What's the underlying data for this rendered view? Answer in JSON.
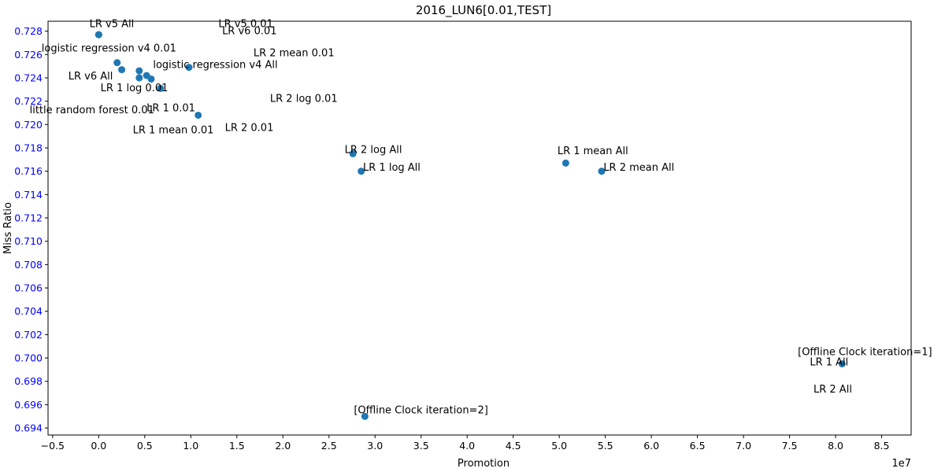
{
  "chart_data": {
    "type": "scatter",
    "title": "2016_LUN6[0.01,TEST]",
    "xlabel": "Promotion",
    "ylabel": "Miss Ratio",
    "x_offset_label": "1e7",
    "xlim": [
      -0.55,
      8.82
    ],
    "ylim": [
      0.6934,
      0.72885
    ],
    "xticks": [
      -0.5,
      0.0,
      0.5,
      1.0,
      1.5,
      2.0,
      2.5,
      3.0,
      3.5,
      4.0,
      4.5,
      5.0,
      5.5,
      6.0,
      6.5,
      7.0,
      7.5,
      8.0,
      8.5
    ],
    "xtick_labels": [
      "−0.5",
      "0.0",
      "0.5",
      "1.0",
      "1.5",
      "2.0",
      "2.5",
      "3.0",
      "3.5",
      "4.0",
      "4.5",
      "5.0",
      "5.5",
      "6.0",
      "6.5",
      "7.0",
      "7.5",
      "8.0",
      "8.5"
    ],
    "yticks": [
      0.694,
      0.696,
      0.698,
      0.7,
      0.702,
      0.704,
      0.706,
      0.708,
      0.71,
      0.712,
      0.714,
      0.716,
      0.718,
      0.72,
      0.722,
      0.724,
      0.726,
      0.728
    ],
    "ytick_labels": [
      "0.694",
      "0.696",
      "0.698",
      "0.700",
      "0.702",
      "0.704",
      "0.706",
      "0.708",
      "0.710",
      "0.712",
      "0.714",
      "0.716",
      "0.718",
      "0.720",
      "0.722",
      "0.724",
      "0.726",
      "0.728"
    ],
    "grid": false,
    "colors": {
      "marker": "#1f77b4",
      "ytick_text": "#0000ff",
      "text": "#000000"
    },
    "points": [
      {
        "x": 0.0,
        "y": 0.7277
      },
      {
        "x": 0.0,
        "y": 0.7277
      },
      {
        "x": 0.2,
        "y": 0.7253
      },
      {
        "x": 0.25,
        "y": 0.7247
      },
      {
        "x": 0.44,
        "y": 0.7246
      },
      {
        "x": 0.44,
        "y": 0.724
      },
      {
        "x": 0.52,
        "y": 0.7242
      },
      {
        "x": 0.57,
        "y": 0.7239
      },
      {
        "x": 0.67,
        "y": 0.7231
      },
      {
        "x": 0.98,
        "y": 0.7249
      },
      {
        "x": 1.08,
        "y": 0.7208
      },
      {
        "x": 2.76,
        "y": 0.7175
      },
      {
        "x": 2.85,
        "y": 0.716
      },
      {
        "x": 5.07,
        "y": 0.7167
      },
      {
        "x": 5.46,
        "y": 0.716
      },
      {
        "x": 8.07,
        "y": 0.6995
      },
      {
        "x": 2.89,
        "y": 0.695
      }
    ],
    "annotations": [
      {
        "text": "LR v5 All",
        "x": -0.1,
        "y": 0.72835
      },
      {
        "text": "LR v5 0.01",
        "x": 1.3,
        "y": 0.72835
      },
      {
        "text": "LR v6 0.01",
        "x": 1.34,
        "y": 0.72775
      },
      {
        "text": "logistic regression v4 0.01",
        "x": -0.62,
        "y": 0.72625
      },
      {
        "text": "LR 2 mean 0.01",
        "x": 1.68,
        "y": 0.72585
      },
      {
        "text": "logistic regression v4 All",
        "x": 0.59,
        "y": 0.72485
      },
      {
        "text": "LR v6 All",
        "x": -0.33,
        "y": 0.72385
      },
      {
        "text": "LR 1 log 0.01",
        "x": 0.02,
        "y": 0.72285
      },
      {
        "text": "LR 2 log 0.01",
        "x": 1.86,
        "y": 0.72195
      },
      {
        "text": "little random forest 0.01",
        "x": -0.75,
        "y": 0.72095
      },
      {
        "text": "LR 1 0.01",
        "x": 0.52,
        "y": 0.72115
      },
      {
        "text": "LR 1 mean 0.01",
        "x": 0.37,
        "y": 0.71925
      },
      {
        "text": "LR 2 0.01",
        "x": 1.37,
        "y": 0.71945
      },
      {
        "text": "LR 2 log All",
        "x": 2.67,
        "y": 0.71755
      },
      {
        "text": "LR 1 log All",
        "x": 2.87,
        "y": 0.71605
      },
      {
        "text": "LR 1 mean All",
        "x": 4.98,
        "y": 0.71745
      },
      {
        "text": "LR 2 mean All",
        "x": 5.48,
        "y": 0.71605
      },
      {
        "text": "[Offline Clock iteration=1]",
        "x": 7.59,
        "y": 0.70025
      },
      {
        "text": "LR 1 All",
        "x": 7.72,
        "y": 0.69935
      },
      {
        "text": "LR 2 All",
        "x": 7.76,
        "y": 0.69705
      },
      {
        "text": "[Offline Clock iteration=2]",
        "x": 2.77,
        "y": 0.69525
      }
    ]
  }
}
